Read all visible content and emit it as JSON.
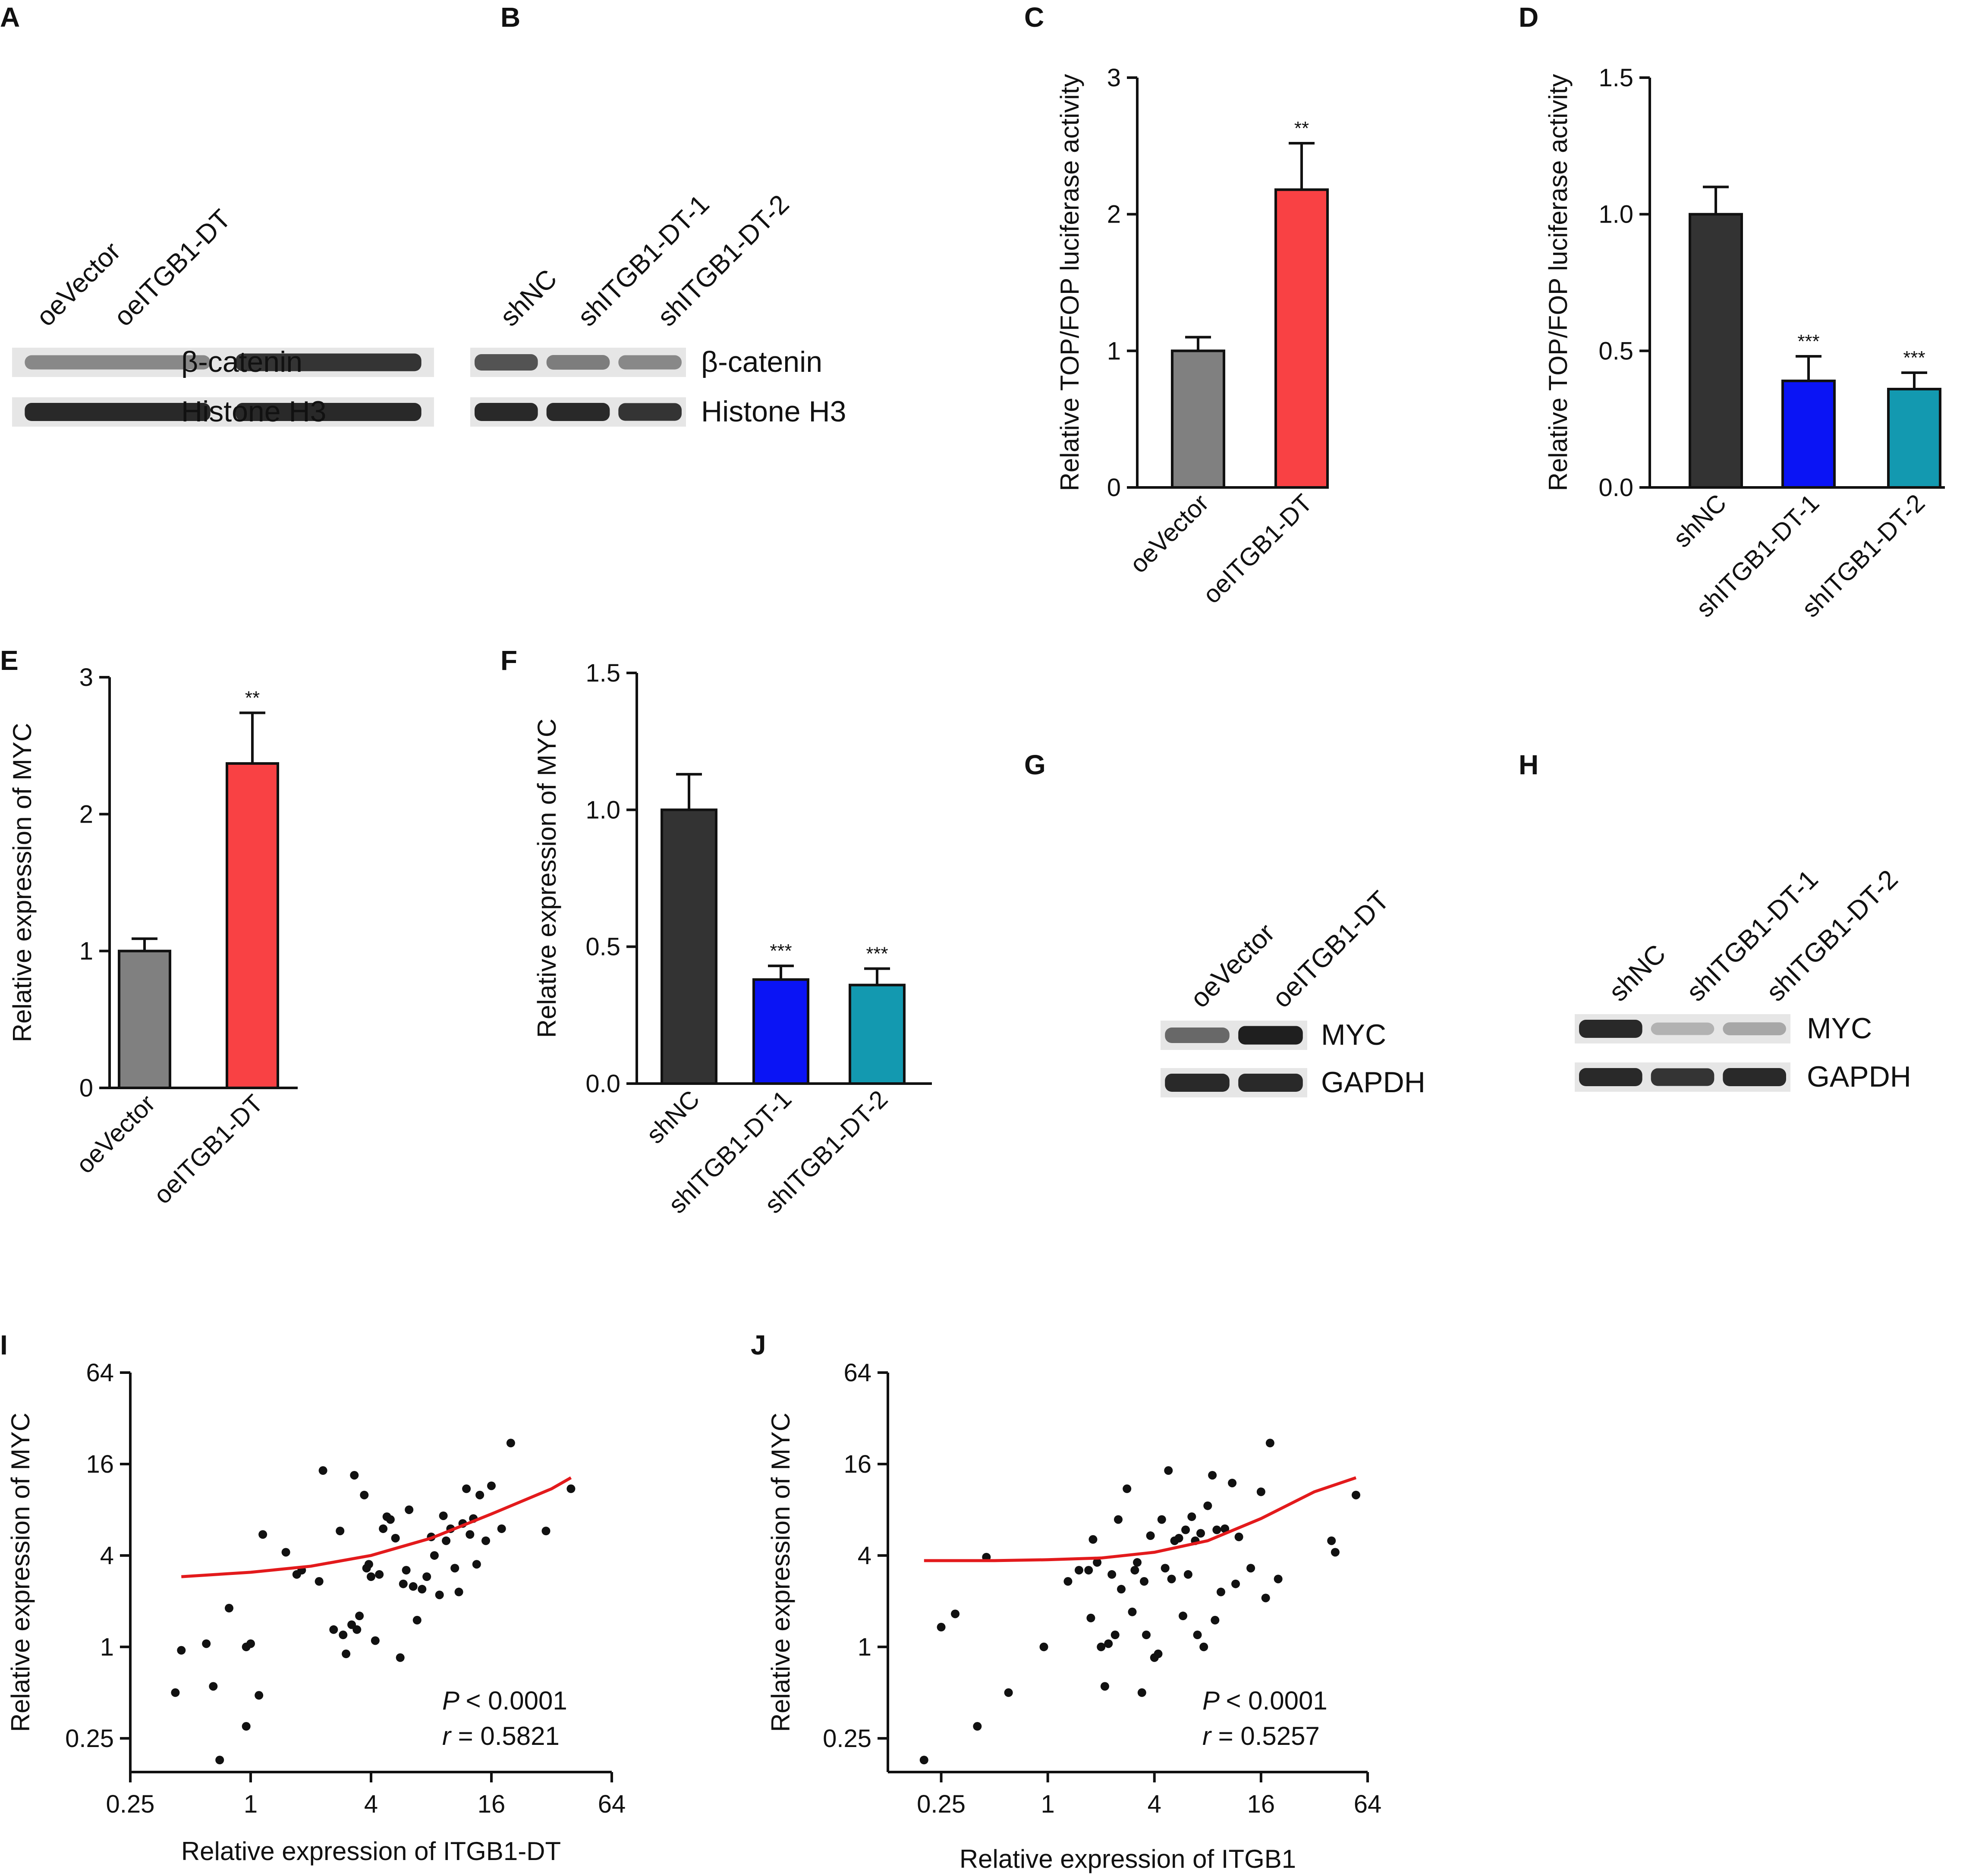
{
  "colors": {
    "axis": "#111111",
    "grey": "#808080",
    "red": "#f94144",
    "dark": "#333333",
    "blue": "#0a14f5",
    "teal": "#1399b0",
    "fit": "#e31a1c",
    "point": "#111111"
  },
  "panels": {
    "A": {
      "label": "A",
      "lanes": [
        "oeVector",
        "oeITGB1-DT"
      ],
      "bands": [
        "β-catenin",
        "Histone H3"
      ]
    },
    "B": {
      "label": "B",
      "lanes": [
        "shNC",
        "shITGB1-DT-1",
        "shITGB1-DT-2"
      ],
      "bands": [
        "β-catenin",
        "Histone H3"
      ]
    },
    "G": {
      "label": "G",
      "lanes": [
        "oeVector",
        "oeITGB1-DT"
      ],
      "bands": [
        "MYC",
        "GAPDH"
      ]
    },
    "H": {
      "label": "H",
      "lanes": [
        "shNC",
        "shITGB1-DT-1",
        "shITGB1-DT-2"
      ],
      "bands": [
        "MYC",
        "GAPDH"
      ]
    }
  },
  "chart_data": [
    {
      "id": "C",
      "label": "C",
      "type": "bar",
      "ylabel": "Relative TOP/FOP luciferase activity",
      "ylim": [
        0,
        3
      ],
      "yticks": [
        "0",
        "1",
        "2",
        "3"
      ],
      "categories": [
        "oeVector",
        "oeITGB1-DT"
      ],
      "values": [
        1.0,
        2.18
      ],
      "errors": [
        0.1,
        0.34
      ],
      "significance": [
        "",
        "**"
      ],
      "colors": [
        "#808080",
        "#f94144"
      ]
    },
    {
      "id": "D",
      "label": "D",
      "type": "bar",
      "ylabel": "Relative TOP/FOP luciferase activity",
      "ylim": [
        0,
        1.5
      ],
      "yticks": [
        "0.0",
        "0.5",
        "1.0",
        "1.5"
      ],
      "categories": [
        "shNC",
        "shITGB1-DT-1",
        "shITGB1-DT-2"
      ],
      "values": [
        1.0,
        0.39,
        0.36
      ],
      "errors": [
        0.1,
        0.09,
        0.06
      ],
      "significance": [
        "",
        "***",
        "***"
      ],
      "colors": [
        "#333333",
        "#0a14f5",
        "#1399b0"
      ]
    },
    {
      "id": "E",
      "label": "E",
      "type": "bar",
      "ylabel": "Relative expression of MYC",
      "ylim": [
        0,
        3
      ],
      "yticks": [
        "0",
        "1",
        "2",
        "3"
      ],
      "categories": [
        "oeVector",
        "oeITGB1-DT"
      ],
      "values": [
        1.0,
        2.37
      ],
      "errors": [
        0.09,
        0.37
      ],
      "significance": [
        "",
        "**"
      ],
      "colors": [
        "#808080",
        "#f94144"
      ]
    },
    {
      "id": "F",
      "label": "F",
      "type": "bar",
      "ylabel": "Relative expression of MYC",
      "ylim": [
        0,
        1.5
      ],
      "yticks": [
        "0.0",
        "0.5",
        "1.0",
        "1.5"
      ],
      "categories": [
        "shNC",
        "shITGB1-DT-1",
        "shITGB1-DT-2"
      ],
      "values": [
        1.0,
        0.38,
        0.36
      ],
      "errors": [
        0.13,
        0.05,
        0.06
      ],
      "significance": [
        "",
        "***",
        "***"
      ],
      "colors": [
        "#333333",
        "#0a14f5",
        "#1399b0"
      ]
    },
    {
      "id": "I",
      "label": "I",
      "type": "scatter",
      "xlabel": "Relative expression of ITGB1-DT",
      "ylabel": "Relative expression of MYC",
      "scale": "log2",
      "xlim": [
        0.25,
        64
      ],
      "ylim": [
        0.15,
        64
      ],
      "xticks": [
        0.25,
        1,
        4,
        16,
        64
      ],
      "xtick_labels": [
        "0.25",
        "1",
        "4",
        "16",
        "64"
      ],
      "yticks": [
        0.25,
        1,
        4,
        16,
        64
      ],
      "ytick_labels": [
        "0.25",
        "1",
        "4",
        "16",
        "64"
      ],
      "p_text": "< 0.0001",
      "r_text": "= 0.5821",
      "fit": [
        [
          0.45,
          2.9
        ],
        [
          1,
          3.1
        ],
        [
          2,
          3.4
        ],
        [
          4,
          4.0
        ],
        [
          8,
          5.2
        ],
        [
          16,
          7.5
        ],
        [
          32,
          11
        ],
        [
          40,
          13
        ]
      ],
      "points": [
        [
          0.42,
          0.5
        ],
        [
          0.45,
          0.95
        ],
        [
          0.6,
          1.05
        ],
        [
          0.65,
          0.55
        ],
        [
          0.7,
          0.18
        ],
        [
          0.78,
          1.8
        ],
        [
          0.95,
          1.0
        ],
        [
          1.0,
          1.05
        ],
        [
          0.95,
          0.3
        ],
        [
          1.1,
          0.48
        ],
        [
          1.15,
          5.5
        ],
        [
          1.5,
          4.2
        ],
        [
          1.7,
          3.0
        ],
        [
          1.8,
          3.2
        ],
        [
          2.2,
          2.7
        ],
        [
          2.3,
          14.5
        ],
        [
          2.6,
          1.3
        ],
        [
          2.8,
          5.8
        ],
        [
          2.9,
          1.2
        ],
        [
          3.0,
          0.9
        ],
        [
          3.2,
          1.4
        ],
        [
          3.4,
          1.3
        ],
        [
          3.3,
          13.5
        ],
        [
          3.5,
          1.6
        ],
        [
          3.7,
          10.0
        ],
        [
          3.8,
          3.3
        ],
        [
          3.9,
          3.5
        ],
        [
          4.0,
          2.9
        ],
        [
          4.2,
          1.1
        ],
        [
          4.4,
          3.0
        ],
        [
          4.6,
          6.0
        ],
        [
          4.8,
          7.2
        ],
        [
          5.0,
          6.9
        ],
        [
          5.3,
          5.2
        ],
        [
          5.6,
          0.85
        ],
        [
          5.8,
          2.6
        ],
        [
          6.0,
          3.2
        ],
        [
          6.2,
          8.0
        ],
        [
          6.5,
          2.5
        ],
        [
          6.8,
          1.5
        ],
        [
          7.2,
          2.4
        ],
        [
          7.6,
          2.9
        ],
        [
          8.0,
          5.3
        ],
        [
          8.3,
          4.0
        ],
        [
          8.8,
          2.2
        ],
        [
          9.2,
          7.3
        ],
        [
          9.5,
          5.0
        ],
        [
          10.0,
          6.0
        ],
        [
          10.5,
          3.3
        ],
        [
          11.0,
          2.3
        ],
        [
          11.5,
          6.5
        ],
        [
          12.0,
          11.0
        ],
        [
          12.5,
          5.5
        ],
        [
          13.0,
          7.0
        ],
        [
          13.5,
          3.5
        ],
        [
          14.0,
          10.0
        ],
        [
          15.0,
          5.0
        ],
        [
          16.0,
          11.5
        ],
        [
          20.0,
          22.0
        ],
        [
          18.0,
          6.0
        ],
        [
          30.0,
          5.8
        ],
        [
          40.0,
          11.0
        ]
      ]
    },
    {
      "id": "J",
      "label": "J",
      "type": "scatter",
      "xlabel": "Relative expression of ITGB1",
      "ylabel": "Relative expression of MYC",
      "scale": "log2",
      "xlim": [
        0.125,
        64
      ],
      "ylim": [
        0.15,
        64
      ],
      "xticks": [
        0.25,
        1,
        4,
        16,
        64
      ],
      "xtick_labels": [
        "0.25",
        "1",
        "4",
        "16",
        "64"
      ],
      "yticks": [
        0.25,
        1,
        4,
        16,
        64
      ],
      "ytick_labels": [
        "0.25",
        "1",
        "4",
        "16",
        "64"
      ],
      "p_text": "< 0.0001",
      "r_text": "= 0.5257",
      "fit": [
        [
          0.2,
          3.7
        ],
        [
          0.5,
          3.7
        ],
        [
          1,
          3.75
        ],
        [
          2,
          3.85
        ],
        [
          4,
          4.2
        ],
        [
          8,
          5.0
        ],
        [
          16,
          7.0
        ],
        [
          32,
          10.5
        ],
        [
          55,
          13.0
        ]
      ],
      "points": [
        [
          0.2,
          0.18
        ],
        [
          0.25,
          1.35
        ],
        [
          0.3,
          1.65
        ],
        [
          0.4,
          0.3
        ],
        [
          0.45,
          3.9
        ],
        [
          0.6,
          0.5
        ],
        [
          0.95,
          1.0
        ],
        [
          1.3,
          2.7
        ],
        [
          1.5,
          3.2
        ],
        [
          1.7,
          3.2
        ],
        [
          1.75,
          1.55
        ],
        [
          1.8,
          5.1
        ],
        [
          1.9,
          3.6
        ],
        [
          2.0,
          1.0
        ],
        [
          2.1,
          0.55
        ],
        [
          2.2,
          1.05
        ],
        [
          2.3,
          3.0
        ],
        [
          2.4,
          1.2
        ],
        [
          2.5,
          6.9
        ],
        [
          2.6,
          2.4
        ],
        [
          2.8,
          11.0
        ],
        [
          3.0,
          1.7
        ],
        [
          3.1,
          3.2
        ],
        [
          3.2,
          3.6
        ],
        [
          3.4,
          0.5
        ],
        [
          3.5,
          2.7
        ],
        [
          3.6,
          1.2
        ],
        [
          3.8,
          5.4
        ],
        [
          4.0,
          0.85
        ],
        [
          4.2,
          0.9
        ],
        [
          4.4,
          6.9
        ],
        [
          4.6,
          3.3
        ],
        [
          4.8,
          14.5
        ],
        [
          5.0,
          2.8
        ],
        [
          5.2,
          5.0
        ],
        [
          5.5,
          5.2
        ],
        [
          5.8,
          1.6
        ],
        [
          6.0,
          5.9
        ],
        [
          6.2,
          3.0
        ],
        [
          6.5,
          7.2
        ],
        [
          6.8,
          5.0
        ],
        [
          7.0,
          1.2
        ],
        [
          7.3,
          5.6
        ],
        [
          7.6,
          1.0
        ],
        [
          8.0,
          8.5
        ],
        [
          8.5,
          13.5
        ],
        [
          8.8,
          1.5
        ],
        [
          9.0,
          5.9
        ],
        [
          9.5,
          2.3
        ],
        [
          10.0,
          6.0
        ],
        [
          11.0,
          12.0
        ],
        [
          11.5,
          2.6
        ],
        [
          12.0,
          5.3
        ],
        [
          14.0,
          3.3
        ],
        [
          16.0,
          10.5
        ],
        [
          18.0,
          22.0
        ],
        [
          17.0,
          2.1
        ],
        [
          20.0,
          2.8
        ],
        [
          40.0,
          5.0
        ],
        [
          42.0,
          4.2
        ],
        [
          55.0,
          10.0
        ]
      ]
    }
  ],
  "source_note": ""
}
